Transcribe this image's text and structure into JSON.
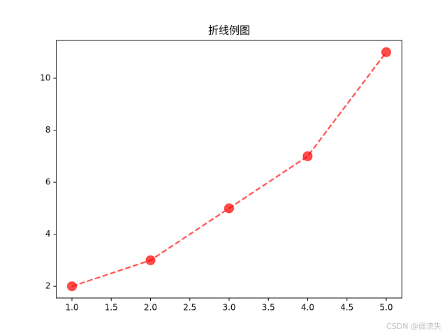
{
  "chart_data": {
    "type": "line",
    "title": "折线例图",
    "x": [
      1,
      2,
      3,
      4,
      5
    ],
    "series": [
      {
        "color": "#ff0000",
        "values": [
          2,
          3,
          5,
          7,
          11
        ]
      }
    ],
    "xlim": [
      0.8,
      5.2
    ],
    "xticks": [
      {
        "value": 1,
        "label": "1.0"
      },
      {
        "value": 1.5,
        "label": "1.5"
      },
      {
        "value": 2,
        "label": "2.0"
      },
      {
        "value": 2.5,
        "label": "2.5"
      },
      {
        "value": 3,
        "label": "3.0"
      },
      {
        "value": 3.5,
        "label": "3.5"
      },
      {
        "value": 4,
        "label": "4.0"
      },
      {
        "value": 4.5,
        "label": "4.5"
      },
      {
        "value": 5,
        "label": "5.0"
      }
    ],
    "ylim": [
      1.55,
      11.45
    ],
    "yticks": [
      2,
      4,
      6,
      8,
      10
    ],
    "watermark": "CSDN @阔流失"
  }
}
